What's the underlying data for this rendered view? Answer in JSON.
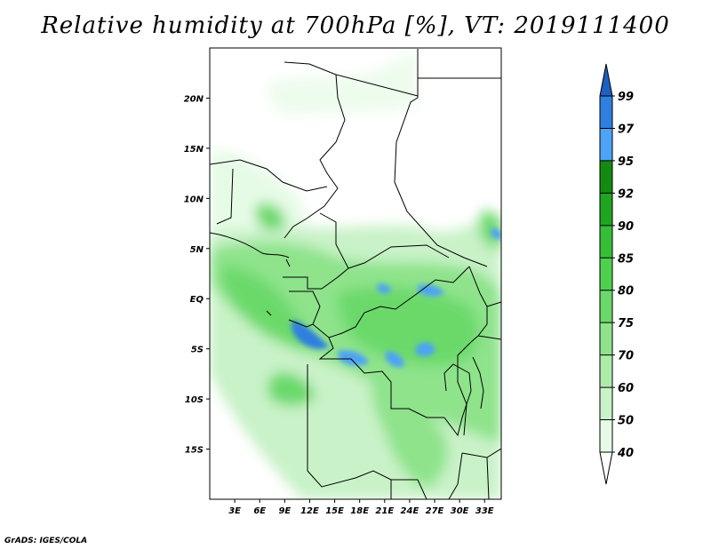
{
  "title": "Relative humidity at 700hPa [%], VT: 2019111400",
  "credit": "GrADS: IGES/COLA",
  "map": {
    "lat_ticks": [
      {
        "lat": 20,
        "label": "20N"
      },
      {
        "lat": 15,
        "label": "15N"
      },
      {
        "lat": 10,
        "label": "10N"
      },
      {
        "lat": 5,
        "label": "5N"
      },
      {
        "lat": 0,
        "label": "EQ"
      },
      {
        "lat": -5,
        "label": "5S"
      },
      {
        "lat": -10,
        "label": "10S"
      },
      {
        "lat": -15,
        "label": "15S"
      }
    ],
    "lon_ticks": [
      {
        "lon": 3,
        "label": "3E"
      },
      {
        "lon": 6,
        "label": "6E"
      },
      {
        "lon": 9,
        "label": "9E"
      },
      {
        "lon": 12,
        "label": "12E"
      },
      {
        "lon": 15,
        "label": "15E"
      },
      {
        "lon": 18,
        "label": "18E"
      },
      {
        "lon": 21,
        "label": "21E"
      },
      {
        "lon": 24,
        "label": "24E"
      },
      {
        "lon": 27,
        "label": "27E"
      },
      {
        "lon": 30,
        "label": "30E"
      },
      {
        "lon": 33,
        "label": "33E"
      }
    ],
    "lon_range": [
      0,
      35
    ],
    "lat_range": [
      -20,
      25
    ]
  },
  "colorbar": {
    "levels": [
      "40",
      "50",
      "60",
      "70",
      "75",
      "80",
      "85",
      "90",
      "92",
      "95",
      "97",
      "99"
    ],
    "colors": [
      "#ffffff",
      "#e6fbe6",
      "#c9f2c8",
      "#acebaa",
      "#8ee38b",
      "#6ad96a",
      "#4ecf4e",
      "#36bf36",
      "#20a520",
      "#138b13",
      "#4da3f5",
      "#2f7fe0",
      "#1f5fc0"
    ]
  }
}
